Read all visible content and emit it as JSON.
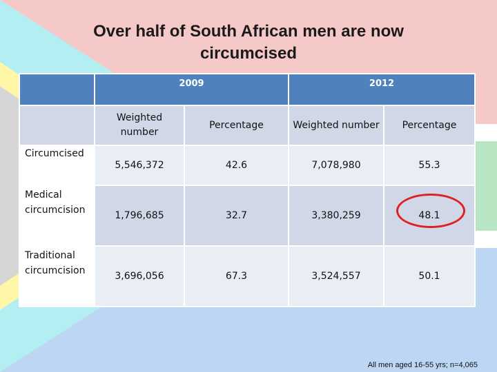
{
  "title_line1": "Over half of South African men are now",
  "title_line2": "circumcised",
  "table": {
    "years": [
      "2009",
      "2012"
    ],
    "subheaders": [
      "Weighted number",
      "Percentage",
      "Weighted number",
      "Percentage"
    ],
    "rows": [
      {
        "label": "Circumcised",
        "values": [
          "5,546,372",
          "42.6",
          "7,078,980",
          "55.3"
        ]
      },
      {
        "label": "Medical circumcision",
        "values": [
          "1,796,685",
          "32.7",
          "3,380,259",
          "48.1"
        ]
      },
      {
        "label": "Traditional circumcision",
        "values": [
          "3,696,056",
          "67.3",
          "3,524,557",
          "50.1"
        ]
      }
    ]
  },
  "highlight_color": "#e02020",
  "footnote": "All men aged 16-55 yrs; n=4,065"
}
